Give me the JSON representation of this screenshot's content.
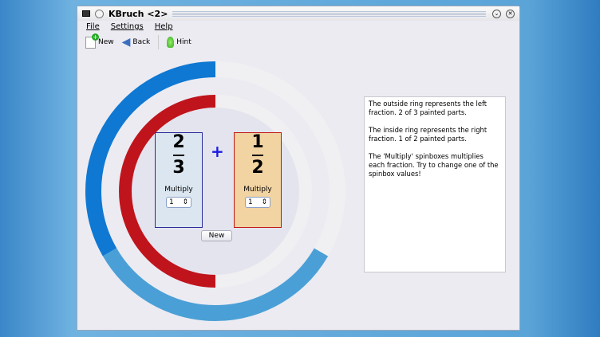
{
  "window": {
    "title": "KBruch <2>"
  },
  "menu": [
    "File",
    "Settings",
    "Help"
  ],
  "toolbar": {
    "new": "New",
    "back": "Back",
    "hint": "Hint"
  },
  "left_fraction": {
    "numerator": "2",
    "denominator": "3",
    "multiply_label": "Multiply",
    "multiply_value": "1"
  },
  "operator": "+",
  "right_fraction": {
    "numerator": "1",
    "denominator": "2",
    "multiply_label": "Multiply",
    "multiply_value": "1"
  },
  "new_button": "New",
  "info": [
    "The outside ring represents the left fraction. 2 of 3 painted parts.",
    "The inside ring represents the right fraction. 1 of 2 painted parts.",
    "The 'Multiply' spinboxes multiplies each fraction. Try to change one of the spinbox values!"
  ],
  "colors": {
    "outer_part1": "#0f78d2",
    "outer_part2": "#4aa0d6",
    "inner_painted": "#c0141c",
    "unpainted": "#f0f0f2",
    "left_box": "#dbe6f0",
    "right_box": "#f2d3a2"
  }
}
